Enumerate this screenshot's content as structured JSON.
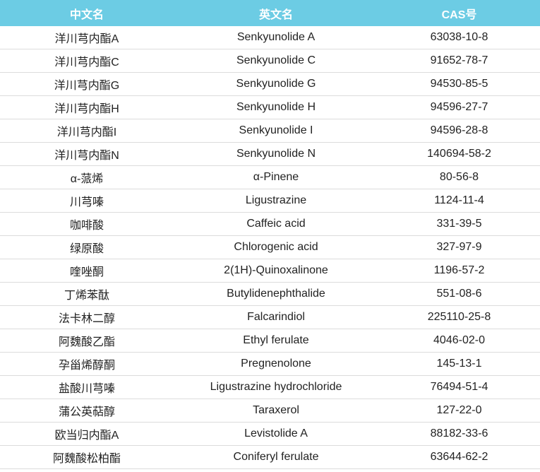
{
  "header_color": "#6ccce4",
  "columns": [
    "中文名",
    "英文名",
    "CAS号"
  ],
  "rows": [
    [
      "洋川芎内酯A",
      "Senkyunolide A",
      "63038-10-8"
    ],
    [
      "洋川芎内酯C",
      "Senkyunolide C",
      "91652-78-7"
    ],
    [
      "洋川芎内酯G",
      "Senkyunolide G",
      "94530-85-5"
    ],
    [
      "洋川芎内酯H",
      "Senkyunolide H",
      "94596-27-7"
    ],
    [
      "洋川芎内酯I",
      "Senkyunolide I",
      "94596-28-8"
    ],
    [
      "洋川芎内酯N",
      "Senkyunolide N",
      "140694-58-2"
    ],
    [
      "α-蒎烯",
      "α-Pinene",
      "80-56-8"
    ],
    [
      "川芎嗪",
      "Ligustrazine",
      "1124-11-4"
    ],
    [
      "咖啡酸",
      "Caffeic acid",
      "331-39-5"
    ],
    [
      "绿原酸",
      "Chlorogenic acid",
      "327-97-9"
    ],
    [
      "喹唑酮",
      "2(1H)-Quinoxalinone",
      "1196-57-2"
    ],
    [
      "丁烯苯酞",
      "Butylidenephthalide",
      "551-08-6"
    ],
    [
      "法卡林二醇",
      "Falcarindiol",
      "225110-25-8"
    ],
    [
      "阿魏酸乙酯",
      "Ethyl ferulate",
      "4046-02-0"
    ],
    [
      "孕甾烯醇酮",
      "Pregnenolone",
      "145-13-1"
    ],
    [
      "盐酸川芎嗪",
      "Ligustrazine hydrochloride",
      "76494-51-4"
    ],
    [
      "蒲公英萜醇",
      "Taraxerol",
      "127-22-0"
    ],
    [
      "欧当归内酯A",
      "Levistolide A",
      "88182-33-6"
    ],
    [
      "阿魏酸松柏酯",
      "Coniferyl ferulate",
      "63644-62-2"
    ]
  ]
}
